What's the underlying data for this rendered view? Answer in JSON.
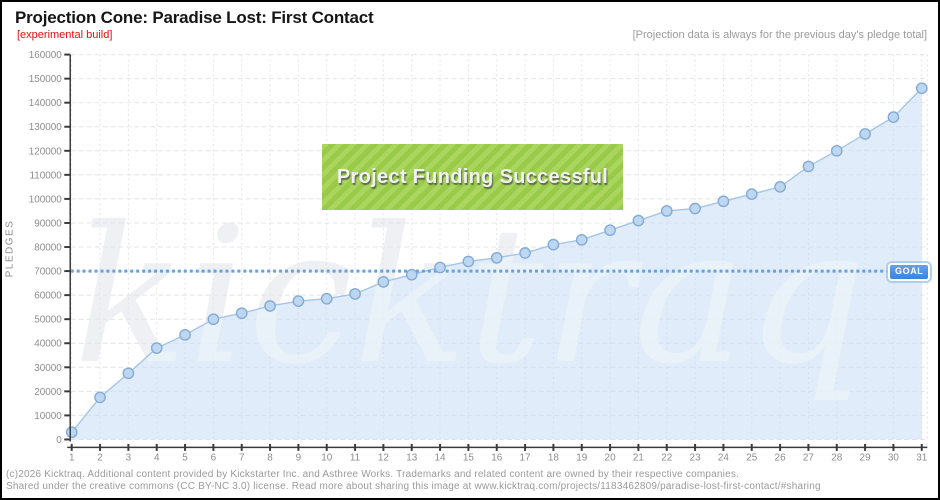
{
  "header": {
    "title": "Projection Cone: Paradise Lost: First Contact",
    "subtitle": "[experimental build]",
    "note": "[Projection data is always for the previous day's pledge total]"
  },
  "chart_data": {
    "type": "area",
    "title": "Projection Cone: Paradise Lost: First Contact",
    "xlabel": "",
    "ylabel": "PLEDGES",
    "x": [
      1,
      2,
      3,
      4,
      5,
      6,
      7,
      8,
      9,
      10,
      11,
      12,
      13,
      14,
      15,
      16,
      17,
      18,
      19,
      20,
      21,
      22,
      23,
      24,
      25,
      26,
      27,
      28,
      29,
      30,
      31
    ],
    "values": [
      3000,
      17500,
      27500,
      38000,
      43500,
      50000,
      52500,
      55500,
      57500,
      58500,
      60500,
      65500,
      68500,
      71500,
      74000,
      75500,
      77500,
      81000,
      83000,
      87000,
      91000,
      95000,
      96000,
      99000,
      102000,
      105000,
      113500,
      120000,
      127000,
      134000,
      146000
    ],
    "ylim": [
      0,
      160000
    ],
    "ytick_step": 10000,
    "xlim": [
      1,
      31
    ],
    "grid": true,
    "legend": "none",
    "goal": {
      "value": 70000,
      "label": "GOAL"
    },
    "banner": "Project Funding Successful",
    "watermark": "kicktraq",
    "colors": {
      "area_fill": "rgba(199,221,244,0.55)",
      "line": "#a5c5e7",
      "point_fill": "#bdd7f1",
      "point_stroke": "#84abd6",
      "goal_line": "#68a0db",
      "goal_badge": "#4a90e2",
      "banner_bg": "#9ed04a",
      "grid": "#e4e4e4",
      "axis": "#3a3a3a",
      "tick_text": "#8c8c8c",
      "subtitle_red": "#e01010",
      "note_gray": "#9b9b9b"
    }
  },
  "footer": {
    "line1": "(c)2026 Kicktraq. Additional content provided by Kickstarter Inc. and Asthree Works. Trademarks and related content are owned by their respective companies.",
    "line2": "Shared under the creative commons (CC BY-NC 3.0) license. Read more about sharing this image at www.kicktraq.com/projects/1183462809/paradise-lost-first-contact/#sharing"
  }
}
